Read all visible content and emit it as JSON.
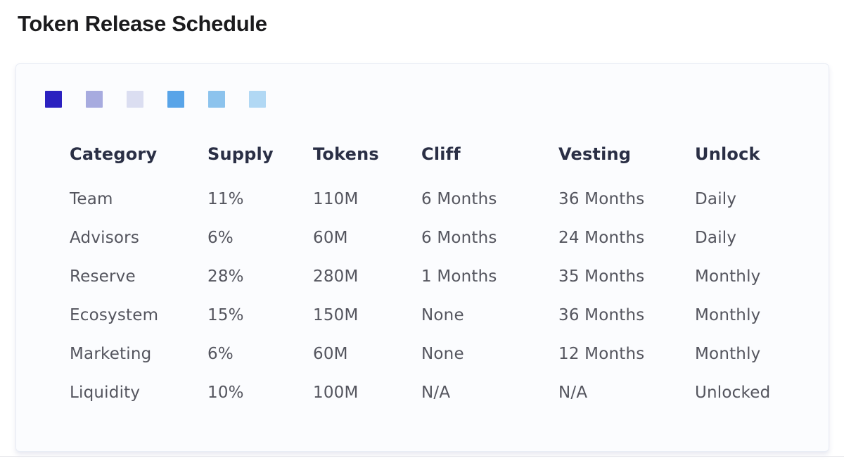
{
  "page": {
    "title": "Token Release Schedule"
  },
  "legend": {
    "swatches": [
      {
        "name": "legend-swatch-1",
        "color": "#2b21c0"
      },
      {
        "name": "legend-swatch-2",
        "color": "#a7abdf"
      },
      {
        "name": "legend-swatch-3",
        "color": "#dbdef1"
      },
      {
        "name": "legend-swatch-4",
        "color": "#58a4e8"
      },
      {
        "name": "legend-swatch-5",
        "color": "#8cc3ed"
      },
      {
        "name": "legend-swatch-6",
        "color": "#b1d8f4"
      }
    ]
  },
  "chart_data": {
    "type": "table",
    "title": "Token Release Schedule",
    "columns": [
      "Category",
      "Supply",
      "Tokens",
      "Cliff",
      "Vesting",
      "Unlock"
    ],
    "rows": [
      [
        "Team",
        "11%",
        "110M",
        "6 Months",
        "36 Months",
        "Daily"
      ],
      [
        "Advisors",
        "6%",
        "60M",
        "6 Months",
        "24 Months",
        "Daily"
      ],
      [
        "Reserve",
        "28%",
        "280M",
        "1 Months",
        "35 Months",
        "Monthly"
      ],
      [
        "Ecosystem",
        "15%",
        "150M",
        "None",
        "36 Months",
        "Monthly"
      ],
      [
        "Marketing",
        "6%",
        "60M",
        "None",
        "12 Months",
        "Monthly"
      ],
      [
        "Liquidity",
        "10%",
        "100M",
        "N/A",
        "N/A",
        "Unlocked"
      ]
    ],
    "legend_colors": [
      "#2b21c0",
      "#a7abdf",
      "#dbdef1",
      "#58a4e8",
      "#8cc3ed",
      "#b1d8f4"
    ],
    "layout": {
      "legend_position": "top-left",
      "grid": false
    },
    "colors": {
      "card_background": "#fbfcfe",
      "card_border": "#e9edf5",
      "header_text": "#2a2f45",
      "body_text": "#54555e",
      "title_text": "#1b1b1d"
    }
  }
}
